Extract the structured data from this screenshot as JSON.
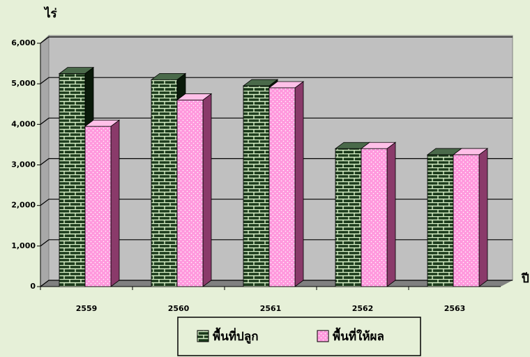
{
  "chart_data": {
    "type": "bar3d",
    "y_label": "ไร่",
    "x_label": "ปี",
    "categories": [
      "2559",
      "2560",
      "2561",
      "2562",
      "2563"
    ],
    "series": [
      {
        "name": "พื้นที่ปลูก",
        "color": "#1b3a1b",
        "values": [
          5250,
          5100,
          4950,
          3400,
          3250
        ]
      },
      {
        "name": "พื้นที่ให้ผล",
        "color": "#ff99dd",
        "values": [
          3950,
          4600,
          4900,
          3400,
          3250
        ]
      }
    ],
    "ylim": [
      0,
      6000
    ],
    "yticks": [
      0,
      {
        "value": 1000,
        "label": "1,000"
      },
      {
        "value": 2000,
        "label": "2,000"
      },
      {
        "value": 3000,
        "label": "3,000"
      },
      {
        "value": 4000,
        "label": "4,000"
      },
      {
        "value": 5000,
        "label": "5,000"
      },
      {
        "value": 6000,
        "label": "6,000"
      }
    ],
    "grid": true
  }
}
